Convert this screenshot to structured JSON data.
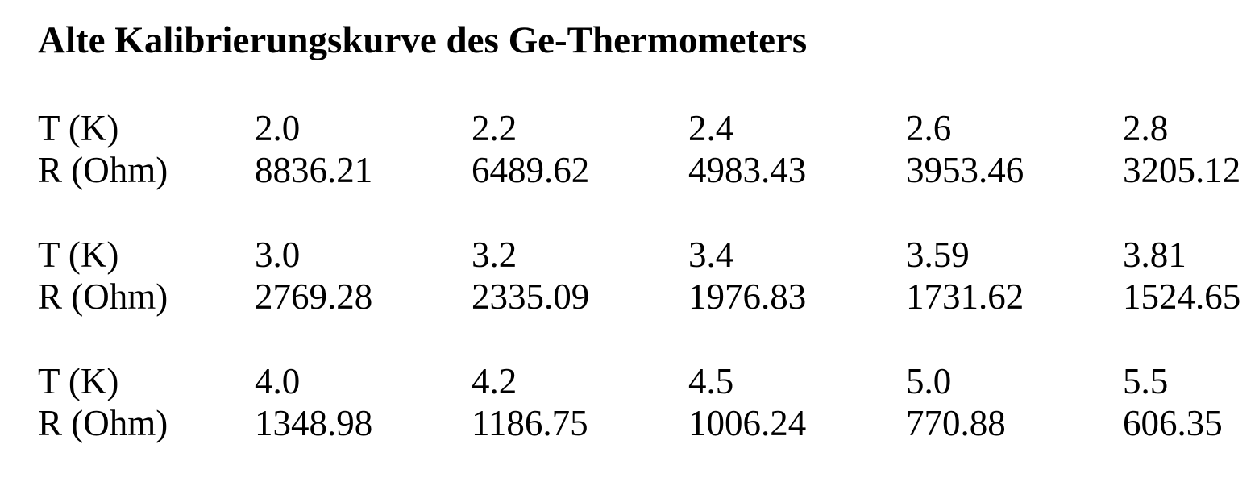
{
  "title": "Alte Kalibrierungskurve des Ge-Thermometers",
  "table": {
    "blocks": [
      {
        "t_label": "T (K)",
        "r_label": "R (Ohm)",
        "t_values": [
          "2.0",
          "2.2",
          "2.4",
          "2.6",
          "2.8"
        ],
        "r_values": [
          "8836.21",
          "6489.62",
          "4983.43",
          "3953.46",
          "3205.12"
        ]
      },
      {
        "t_label": "T (K)",
        "r_label": "R (Ohm)",
        "t_values": [
          "3.0",
          "3.2",
          "3.4",
          "3.59",
          "3.81"
        ],
        "r_values": [
          "2769.28",
          "2335.09",
          "1976.83",
          "1731.62",
          "1524.65"
        ]
      },
      {
        "t_label": "T (K)",
        "r_label": "R (Ohm)",
        "t_values": [
          "4.0",
          "4.2",
          "4.5",
          "5.0",
          "5.5"
        ],
        "r_values": [
          "1348.98",
          "1186.75",
          "1006.24",
          "770.88",
          "606.35"
        ]
      }
    ]
  }
}
